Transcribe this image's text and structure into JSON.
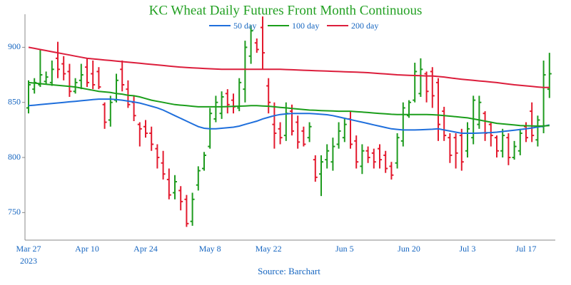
{
  "chart_data": {
    "type": "ohlc",
    "title": "KC Wheat Daily Futures Front Month Continuous",
    "source": "Source: Barchart",
    "year": "2023",
    "categories": [
      "Mar 27",
      null,
      null,
      null,
      null,
      null,
      null,
      null,
      null,
      null,
      "Apr 10",
      null,
      null,
      null,
      null,
      null,
      null,
      null,
      null,
      null,
      "Apr 24",
      null,
      null,
      null,
      null,
      null,
      null,
      null,
      null,
      null,
      null,
      "May 8",
      null,
      null,
      null,
      null,
      null,
      null,
      null,
      null,
      null,
      "May 22",
      null,
      null,
      null,
      null,
      null,
      null,
      null,
      null,
      null,
      null,
      null,
      null,
      "Jun 5",
      null,
      null,
      null,
      null,
      null,
      null,
      null,
      null,
      null,
      null,
      "Jun 20",
      null,
      null,
      null,
      null,
      null,
      null,
      null,
      null,
      null,
      "Jul 3",
      null,
      null,
      null,
      null,
      null,
      null,
      null,
      null,
      null,
      "Jul 17",
      null,
      null,
      null,
      null
    ],
    "open": [
      845,
      862,
      866,
      869,
      868,
      890,
      885,
      878,
      860,
      870,
      882,
      876,
      878,
      848,
      834,
      852,
      880,
      862,
      850,
      830,
      828,
      822,
      808,
      795,
      780,
      768,
      770,
      762,
      742,
      775,
      790,
      810,
      835,
      840,
      858,
      852,
      845,
      862,
      892,
      904,
      918,
      865,
      830,
      826,
      820,
      842,
      832,
      824,
      818,
      798,
      785,
      798,
      796,
      812,
      818,
      835,
      815,
      792,
      806,
      804,
      808,
      802,
      792,
      795,
      815,
      838,
      852,
      858,
      876,
      878,
      868,
      842,
      818,
      818,
      820,
      806,
      818,
      830,
      840,
      830,
      818,
      806,
      818,
      800,
      806,
      828,
      842,
      816,
      828,
      862
    ],
    "high": [
      870,
      872,
      898,
      878,
      888,
      905,
      892,
      885,
      872,
      885,
      890,
      888,
      882,
      850,
      856,
      876,
      888,
      870,
      856,
      832,
      834,
      828,
      812,
      806,
      790,
      784,
      774,
      766,
      768,
      792,
      805,
      845,
      856,
      860,
      862,
      858,
      872,
      906,
      920,
      908,
      928,
      872,
      850,
      832,
      850,
      848,
      838,
      828,
      832,
      802,
      802,
      812,
      818,
      832,
      836,
      842,
      820,
      812,
      810,
      808,
      812,
      806,
      796,
      822,
      850,
      852,
      886,
      890,
      878,
      882,
      872,
      846,
      822,
      822,
      826,
      832,
      856,
      856,
      842,
      832,
      820,
      826,
      822,
      815,
      826,
      832,
      850,
      838,
      888,
      895
    ],
    "low": [
      840,
      858,
      864,
      866,
      865,
      872,
      870,
      855,
      858,
      862,
      864,
      862,
      862,
      826,
      828,
      850,
      860,
      845,
      833,
      810,
      818,
      806,
      790,
      780,
      762,
      762,
      752,
      737,
      738,
      770,
      788,
      808,
      832,
      835,
      840,
      840,
      842,
      850,
      885,
      895,
      880,
      840,
      808,
      812,
      815,
      820,
      808,
      810,
      814,
      778,
      765,
      790,
      788,
      808,
      814,
      808,
      790,
      785,
      795,
      790,
      790,
      786,
      780,
      790,
      810,
      836,
      850,
      855,
      850,
      845,
      815,
      815,
      795,
      790,
      788,
      800,
      812,
      826,
      815,
      810,
      800,
      800,
      793,
      798,
      802,
      814,
      814,
      810,
      822,
      854
    ],
    "close": [
      866,
      868,
      875,
      873,
      880,
      880,
      876,
      860,
      868,
      875,
      868,
      866,
      864,
      832,
      850,
      870,
      866,
      848,
      838,
      826,
      822,
      812,
      800,
      785,
      766,
      778,
      760,
      740,
      762,
      788,
      802,
      840,
      850,
      855,
      848,
      846,
      868,
      900,
      915,
      898,
      895,
      850,
      822,
      818,
      840,
      824,
      814,
      812,
      828,
      782,
      796,
      806,
      810,
      824,
      830,
      812,
      796,
      806,
      800,
      796,
      798,
      790,
      784,
      818,
      845,
      850,
      878,
      880,
      860,
      856,
      830,
      820,
      802,
      804,
      796,
      826,
      852,
      850,
      822,
      820,
      806,
      820,
      800,
      810,
      822,
      818,
      820,
      834,
      875,
      876
    ],
    "up_color": "#1e9b1e",
    "down_color": "#e31a2e",
    "series": [
      {
        "name": "50 day",
        "color": "#1f6fdc",
        "values": [
          847,
          847.5,
          848,
          848.5,
          849,
          849.5,
          850,
          850.5,
          851,
          851.5,
          852,
          852.5,
          853,
          853,
          853,
          852.5,
          852,
          851.2,
          850.4,
          849.4,
          848,
          846.5,
          845,
          843,
          840.5,
          838,
          835.5,
          833,
          830.5,
          828,
          826.5,
          826,
          826,
          826.5,
          827,
          827.5,
          828.5,
          830,
          831.5,
          833,
          835,
          836.5,
          838,
          839,
          839.5,
          840,
          840,
          840,
          840,
          839.6,
          839.2,
          838.8,
          838,
          836.8,
          835.6,
          834.4,
          833.2,
          832,
          830.8,
          829.6,
          828.4,
          827.2,
          826,
          825.5,
          825,
          825,
          825,
          825.2,
          825.4,
          825.6,
          826,
          825,
          824,
          823,
          822,
          822,
          822,
          822.2,
          822.4,
          822.6,
          823,
          823.6,
          824.2,
          824.8,
          825.4,
          826,
          826.8,
          827.6,
          828.4,
          829.5
        ]
      },
      {
        "name": "100 day",
        "color": "#1b9e1b",
        "values": [
          868,
          867.5,
          867,
          866.5,
          866,
          865.5,
          865,
          864.5,
          864,
          863,
          862,
          861,
          860,
          859.5,
          859,
          858,
          857.5,
          856.5,
          856,
          855,
          853.5,
          852,
          851,
          850,
          849,
          848,
          847.5,
          847,
          846.5,
          846,
          846,
          846,
          846,
          846,
          846.2,
          846.4,
          846.6,
          846.8,
          847,
          847,
          846.8,
          846.5,
          846,
          845.5,
          845,
          844.5,
          844,
          843.5,
          843,
          842.8,
          842.6,
          842.4,
          842.2,
          842,
          842,
          842,
          841.6,
          841.2,
          840.8,
          840.4,
          840,
          839.6,
          839.2,
          839,
          839,
          839,
          839,
          839,
          839,
          838.8,
          838.5,
          838,
          837.5,
          837,
          836.5,
          836,
          835,
          834,
          833,
          832,
          831,
          830.5,
          830,
          829.5,
          829,
          828.8,
          828.6,
          828.5,
          828.6,
          829
        ]
      },
      {
        "name": "200 day",
        "color": "#dc1e3c",
        "values": [
          900,
          899,
          898,
          897,
          896,
          895,
          894,
          893,
          892,
          891,
          890,
          889.5,
          889,
          888.5,
          888,
          887.5,
          887,
          886.5,
          886,
          885.5,
          885,
          884.5,
          884,
          883.5,
          883,
          882.5,
          882,
          881.7,
          881.4,
          881.1,
          880.8,
          880.5,
          880.3,
          880.1,
          880,
          880,
          880,
          880,
          880,
          880,
          880,
          880,
          880,
          880,
          879.8,
          879.6,
          879.4,
          879.2,
          879,
          878.8,
          878.6,
          878.4,
          878.2,
          878,
          877.8,
          877.6,
          877.4,
          877.2,
          877,
          876.6,
          876.2,
          875.8,
          875.4,
          875,
          874.8,
          874.6,
          874.4,
          874.2,
          874,
          874,
          873.5,
          873,
          872.3,
          871.6,
          871,
          870.5,
          870,
          869.5,
          869,
          868.5,
          868,
          867.3,
          866.6,
          866,
          865.5,
          865,
          864.5,
          864,
          863.5,
          863.5
        ]
      }
    ],
    "ylim": [
      725,
      930
    ],
    "yticks": [
      750,
      800,
      850,
      900
    ]
  }
}
